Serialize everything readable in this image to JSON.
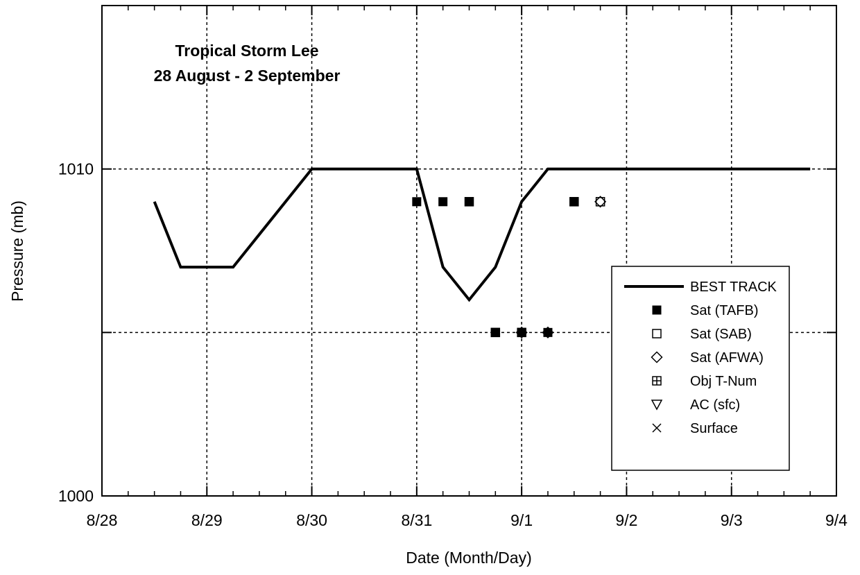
{
  "chart_data": {
    "type": "line",
    "title_lines": [
      "Tropical Storm Lee",
      "28 August - 2 September"
    ],
    "xlabel": "Date (Month/Day)",
    "ylabel": "Pressure (mb)",
    "x_unit": "days after 8/28 00 UTC",
    "xlim": [
      0,
      7
    ],
    "ylim": [
      1000,
      1015
    ],
    "x_ticks": [
      {
        "value": 0,
        "label": "8/28"
      },
      {
        "value": 1,
        "label": "8/29"
      },
      {
        "value": 2,
        "label": "8/30"
      },
      {
        "value": 3,
        "label": "8/31"
      },
      {
        "value": 4,
        "label": "9/1"
      },
      {
        "value": 5,
        "label": "9/2"
      },
      {
        "value": 6,
        "label": "9/3"
      },
      {
        "value": 7,
        "label": "9/4"
      }
    ],
    "y_ticks": [
      {
        "value": 1000,
        "label": "1000"
      },
      {
        "value": 1005,
        "label": ""
      },
      {
        "value": 1010,
        "label": "1010"
      }
    ],
    "grid": true,
    "legend_position": "right",
    "series": [
      {
        "name": "BEST TRACK",
        "marker": "line",
        "points": [
          {
            "x": 0.5,
            "y": 1009
          },
          {
            "x": 0.75,
            "y": 1007
          },
          {
            "x": 1.25,
            "y": 1007
          },
          {
            "x": 2.0,
            "y": 1010
          },
          {
            "x": 3.0,
            "y": 1010
          },
          {
            "x": 3.25,
            "y": 1007
          },
          {
            "x": 3.5,
            "y": 1006
          },
          {
            "x": 3.75,
            "y": 1007
          },
          {
            "x": 4.0,
            "y": 1009
          },
          {
            "x": 4.25,
            "y": 1010
          },
          {
            "x": 6.75,
            "y": 1010
          }
        ]
      },
      {
        "name": "Sat (TAFB)",
        "marker": "filled-square",
        "points": [
          {
            "x": 3.0,
            "y": 1009
          },
          {
            "x": 3.25,
            "y": 1009
          },
          {
            "x": 3.5,
            "y": 1009
          },
          {
            "x": 3.75,
            "y": 1005
          },
          {
            "x": 4.0,
            "y": 1005
          },
          {
            "x": 4.25,
            "y": 1005
          },
          {
            "x": 4.5,
            "y": 1009
          }
        ]
      },
      {
        "name": "Sat (SAB)",
        "marker": "open-square",
        "points": [
          {
            "x": 3.5,
            "y": 1009
          },
          {
            "x": 3.75,
            "y": 1005
          },
          {
            "x": 4.0,
            "y": 1005
          },
          {
            "x": 4.5,
            "y": 1009
          },
          {
            "x": 4.75,
            "y": 1009
          }
        ]
      },
      {
        "name": "Sat (AFWA)",
        "marker": "open-diamond",
        "points": [
          {
            "x": 4.0,
            "y": 1005
          },
          {
            "x": 4.25,
            "y": 1005
          },
          {
            "x": 4.75,
            "y": 1009
          }
        ]
      },
      {
        "name": "Obj T-Num",
        "marker": "boxed-plus",
        "points": []
      },
      {
        "name": "AC (sfc)",
        "marker": "open-triangle-down",
        "points": []
      },
      {
        "name": "Surface",
        "marker": "x",
        "points": []
      }
    ]
  }
}
